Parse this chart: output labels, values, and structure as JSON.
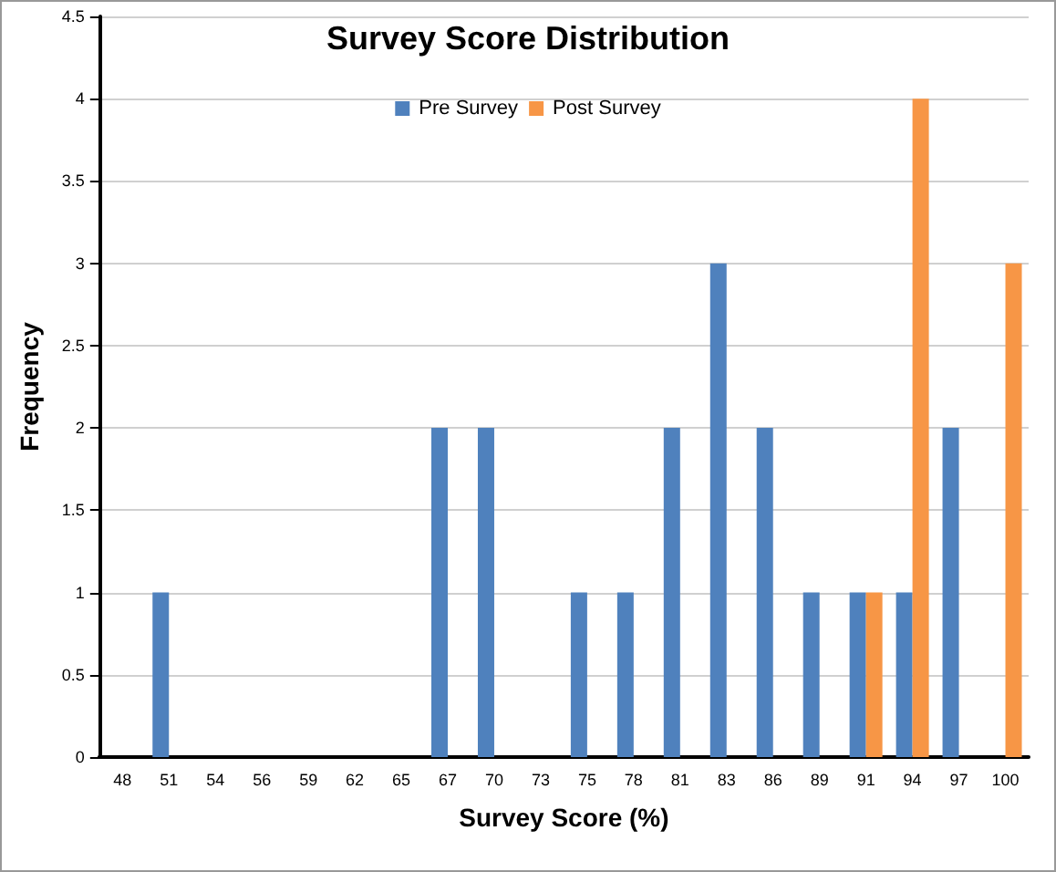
{
  "chart_data": {
    "type": "bar",
    "title": "Survey Score Distribution",
    "xlabel": "Survey Score (%)",
    "ylabel": "Frequency",
    "categories": [
      "48",
      "51",
      "54",
      "56",
      "59",
      "62",
      "65",
      "67",
      "70",
      "73",
      "75",
      "78",
      "81",
      "83",
      "86",
      "89",
      "91",
      "94",
      "97",
      "100"
    ],
    "series": [
      {
        "name": "Pre Survey",
        "color": "#4f81bd",
        "values": [
          0,
          1,
          0,
          0,
          0,
          0,
          0,
          2,
          2,
          0,
          1,
          1,
          2,
          3,
          2,
          1,
          1,
          1,
          2,
          0
        ]
      },
      {
        "name": "Post Survey",
        "color": "#f79646",
        "values": [
          0,
          0,
          0,
          0,
          0,
          0,
          0,
          0,
          0,
          0,
          0,
          0,
          0,
          0,
          0,
          0,
          1,
          4,
          0,
          3
        ]
      }
    ],
    "ylim": [
      0,
      4.5
    ],
    "yticks": [
      0,
      0.5,
      1,
      1.5,
      2,
      2.5,
      3,
      3.5,
      4,
      4.5
    ],
    "grid": "y",
    "legend": "top"
  }
}
